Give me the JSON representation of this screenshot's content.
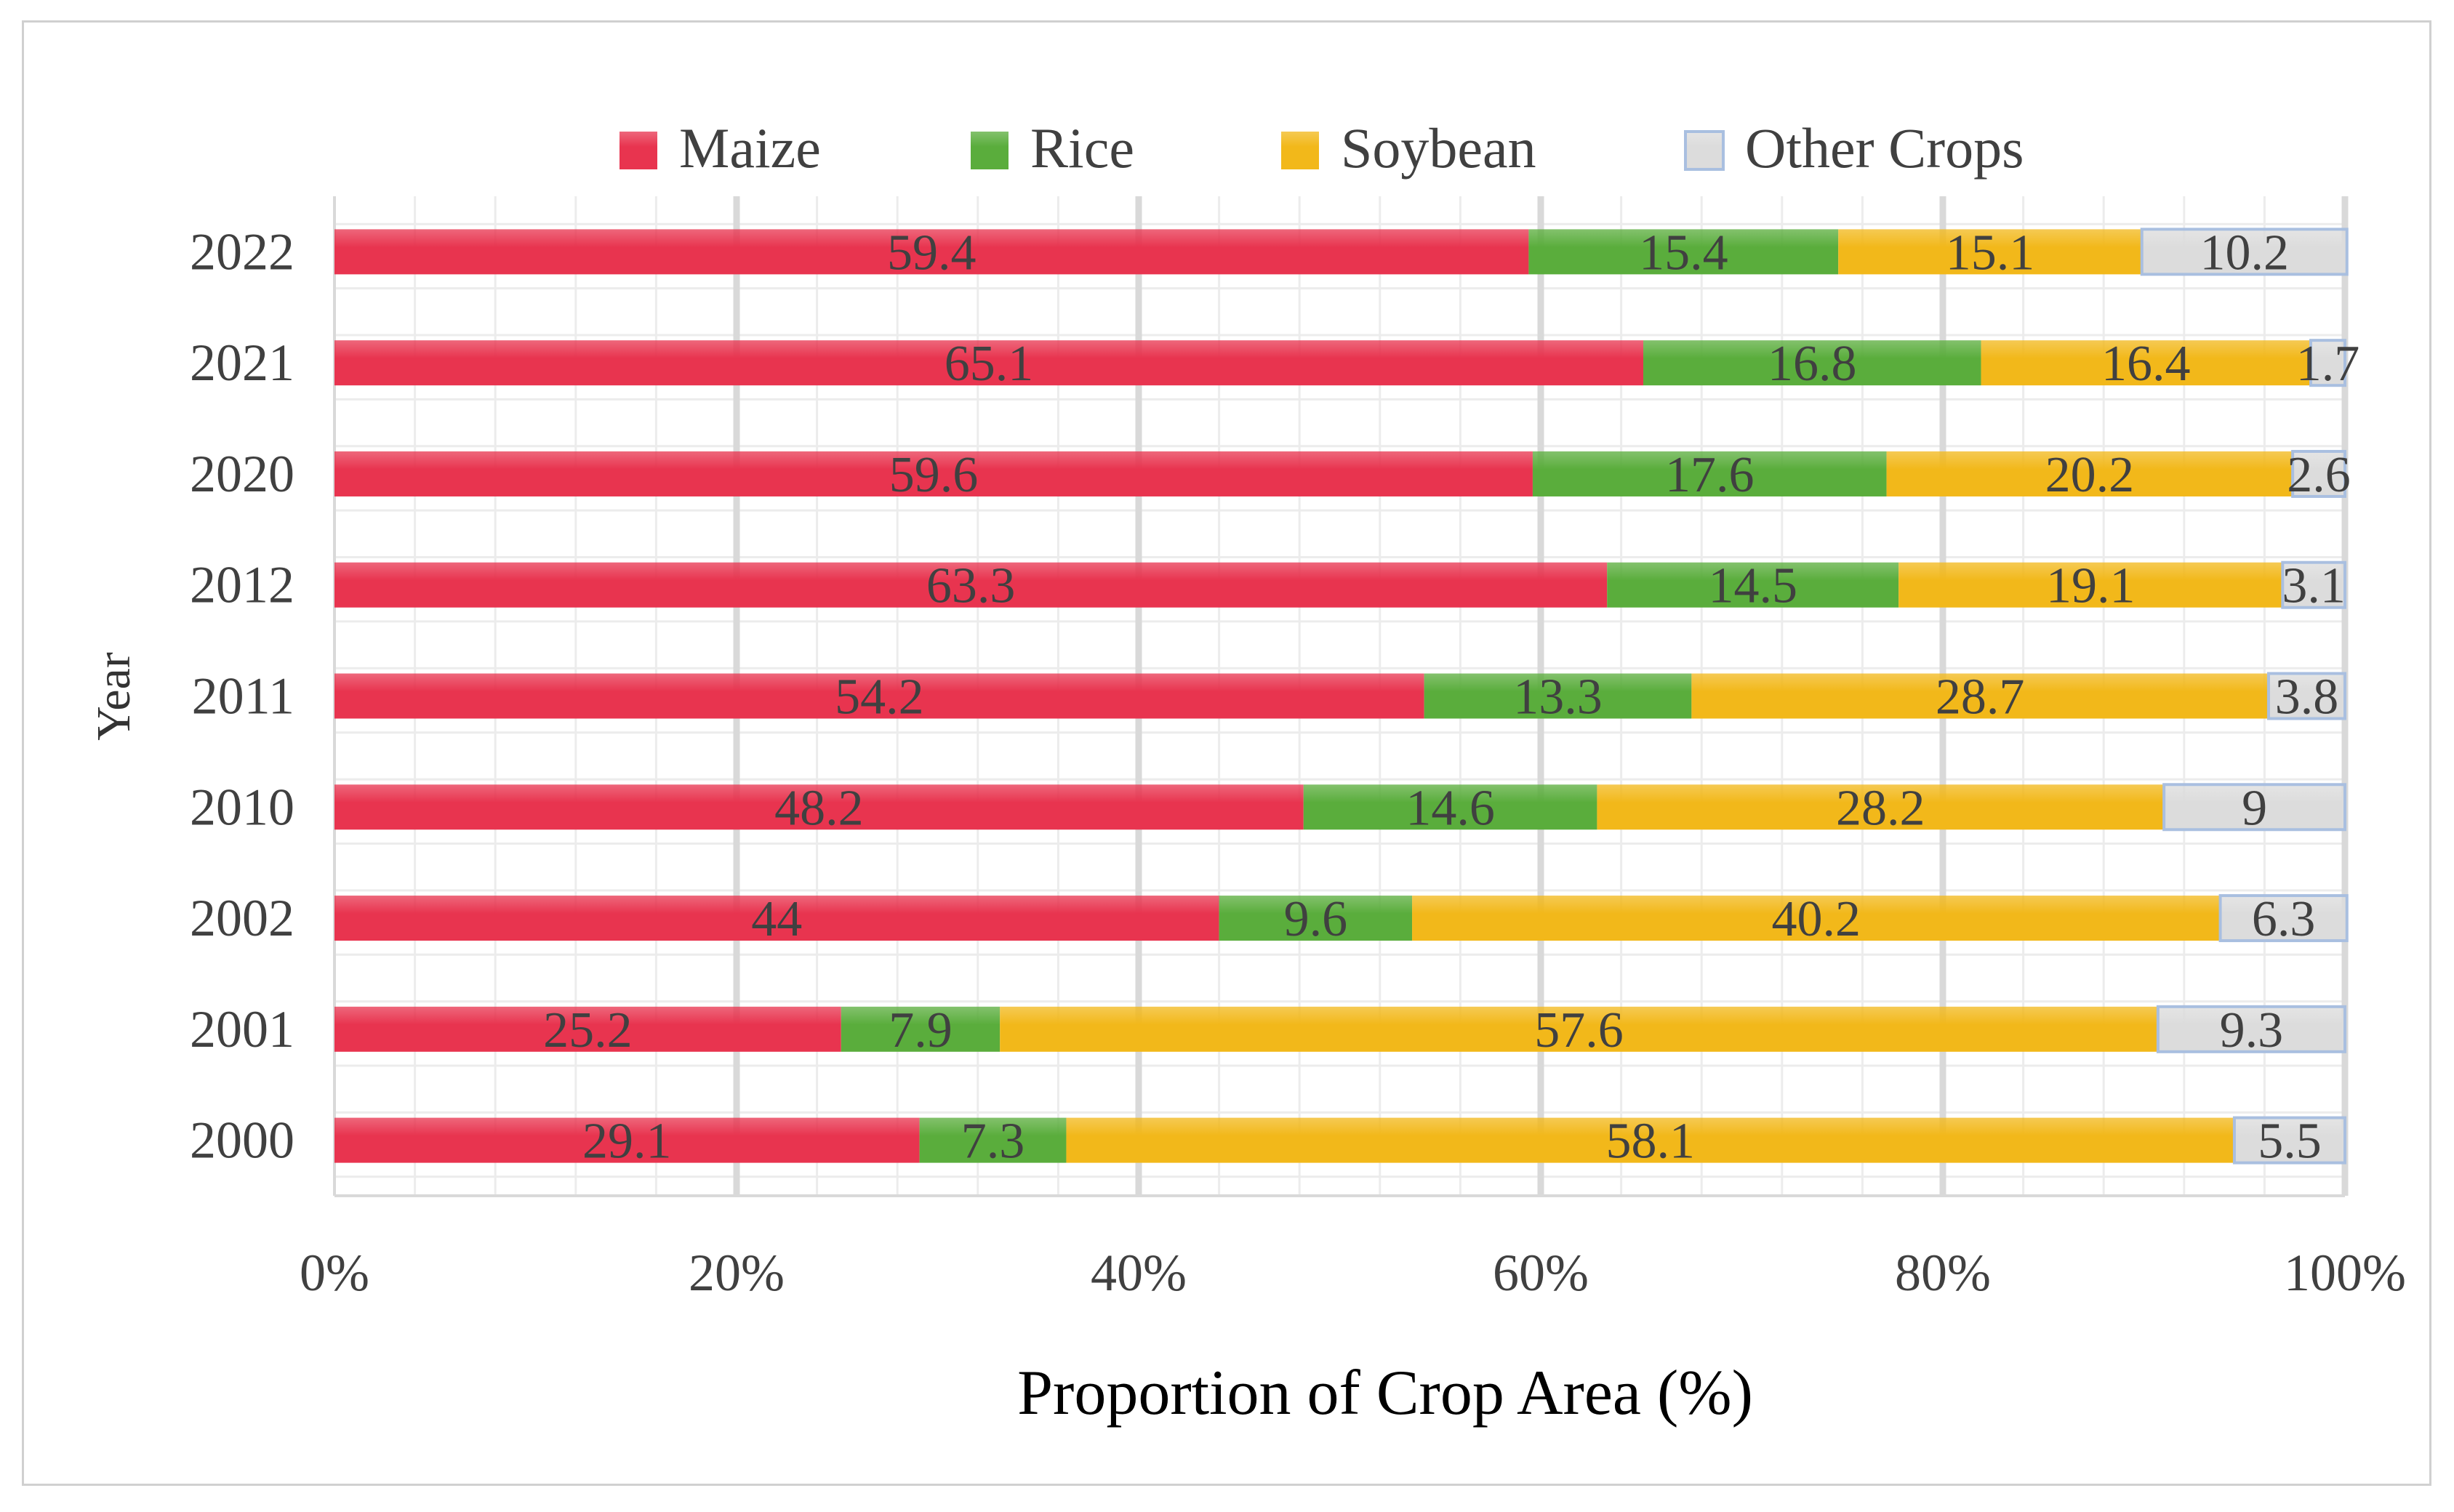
{
  "chart_data": {
    "type": "bar",
    "orientation": "horizontal",
    "stacked": "percent",
    "title": "",
    "xlabel": "Proportion of Crop Area (%)",
    "ylabel": "Year",
    "xlim": [
      0,
      100
    ],
    "x_ticks": [
      "0%",
      "20%",
      "40%",
      "60%",
      "80%",
      "100%"
    ],
    "x_tick_values": [
      0,
      20,
      40,
      60,
      80,
      100
    ],
    "minor_grid_step": 4,
    "grid": true,
    "legend_position": "top-center",
    "categories": [
      "2022",
      "2021",
      "2020",
      "2012",
      "2011",
      "2010",
      "2002",
      "2001",
      "2000"
    ],
    "series": [
      {
        "name": "Maize",
        "color": "#e8344f",
        "values": [
          59.4,
          65.1,
          59.6,
          63.3,
          54.2,
          48.2,
          44,
          25.2,
          29.1
        ]
      },
      {
        "name": "Rice",
        "color": "#5aad3c",
        "values": [
          15.4,
          16.8,
          17.6,
          14.5,
          13.3,
          14.6,
          9.6,
          7.9,
          7.3
        ]
      },
      {
        "name": "Soybean",
        "color": "#f2b81a",
        "values": [
          15.1,
          16.4,
          20.2,
          19.1,
          28.7,
          28.2,
          40.2,
          57.6,
          58.1
        ]
      },
      {
        "name": "Other Crops",
        "color": "#dcdcdc",
        "stroke": "#a9bfe0",
        "values": [
          10.2,
          1.7,
          2.6,
          3.1,
          3.8,
          9,
          6.3,
          9.3,
          5.5
        ]
      }
    ]
  }
}
